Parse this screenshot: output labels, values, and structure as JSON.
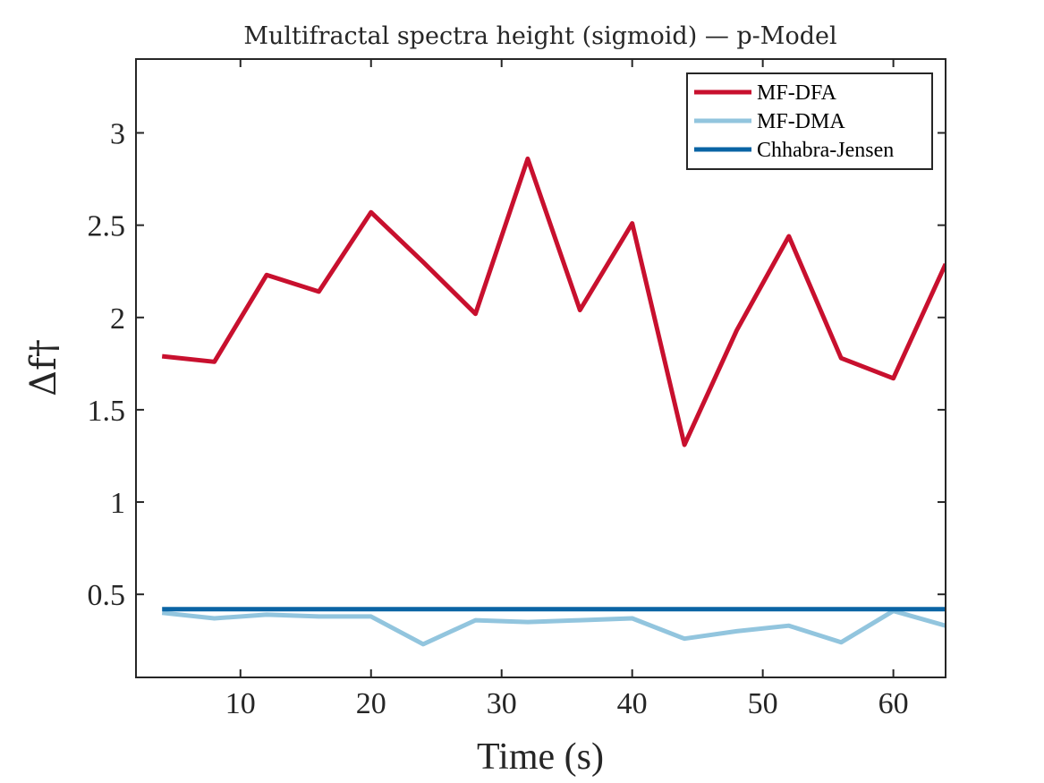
{
  "chart_data": {
    "type": "line",
    "title": "Multifractal spectra height (sigmoid) — p-Model",
    "xlabel": "Time (s)",
    "ylabel": "Δf†",
    "xlim": [
      2,
      64
    ],
    "ylim": [
      0.05,
      3.4
    ],
    "xticks": [
      "10",
      "20",
      "30",
      "40",
      "50",
      "60"
    ],
    "yticks": [
      "0.5",
      "1",
      "1.5",
      "2",
      "2.5",
      "3"
    ],
    "grid": false,
    "legend_position": "top-right",
    "x": [
      4,
      8,
      12,
      16,
      20,
      24,
      28,
      32,
      36,
      40,
      44,
      48,
      52,
      56,
      60,
      64
    ],
    "series": [
      {
        "name": "MF-DFA",
        "color": "#c8102e",
        "values": [
          1.79,
          1.76,
          2.23,
          2.14,
          2.57,
          2.3,
          2.02,
          2.86,
          2.04,
          2.51,
          1.31,
          1.93,
          2.44,
          1.78,
          1.67,
          2.29
        ]
      },
      {
        "name": "MF-DMA",
        "color": "#92c5de",
        "values": [
          0.4,
          0.37,
          0.39,
          0.38,
          0.38,
          0.23,
          0.36,
          0.35,
          0.36,
          0.37,
          0.26,
          0.3,
          0.33,
          0.24,
          0.41,
          0.33
        ]
      },
      {
        "name": "Chhabra-Jensen",
        "color": "#0a64a4",
        "values": [
          0.42,
          0.42,
          0.42,
          0.42,
          0.42,
          0.42,
          0.42,
          0.42,
          0.42,
          0.42,
          0.42,
          0.42,
          0.42,
          0.42,
          0.42,
          0.42
        ]
      }
    ]
  }
}
